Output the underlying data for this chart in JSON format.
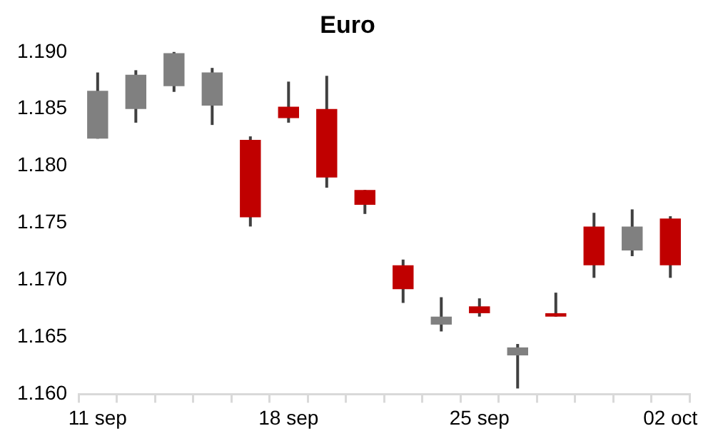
{
  "chart_data": {
    "type": "candlestick",
    "title": "Euro",
    "categories": [
      "11 sep",
      null,
      null,
      null,
      null,
      "18 sep",
      null,
      null,
      null,
      null,
      "25 sep",
      null,
      null,
      null,
      null,
      "02 oct"
    ],
    "ohlc": [
      [
        1.1824,
        1.1882,
        1.1824,
        1.1866
      ],
      [
        1.185,
        1.1884,
        1.1838,
        1.188
      ],
      [
        1.187,
        1.19,
        1.1865,
        1.1899
      ],
      [
        1.1853,
        1.1886,
        1.1836,
        1.1882
      ],
      [
        1.1823,
        1.1826,
        1.1747,
        1.1755
      ],
      [
        1.1852,
        1.1874,
        1.1838,
        1.1842
      ],
      [
        1.185,
        1.1879,
        1.1781,
        1.179
      ],
      [
        1.1779,
        1.1779,
        1.1758,
        1.1766
      ],
      [
        1.1713,
        1.1718,
        1.168,
        1.1692
      ],
      [
        1.1661,
        1.1685,
        1.1655,
        1.1668
      ],
      [
        1.1677,
        1.1684,
        1.1668,
        1.1671
      ],
      [
        1.1634,
        1.1644,
        1.1605,
        1.1641
      ],
      [
        1.1671,
        1.1689,
        1.1668,
        1.1668
      ],
      [
        1.1747,
        1.1759,
        1.1702,
        1.1713
      ],
      [
        1.1726,
        1.1762,
        1.1721,
        1.1747
      ],
      [
        1.1754,
        1.1756,
        1.1702,
        1.1713
      ]
    ],
    "colors": [
      "#808080",
      "#808080",
      "#808080",
      "#808080",
      "#c00000",
      "#c00000",
      "#c00000",
      "#c00000",
      "#c00000",
      "#808080",
      "#c00000",
      "#808080",
      "#c00000",
      "#c00000",
      "#808080",
      "#c00000"
    ],
    "ylim": [
      1.16,
      1.19
    ],
    "yticks": [
      {
        "value": 1.16,
        "label": "1.160"
      },
      {
        "value": 1.165,
        "label": "1.165"
      },
      {
        "value": 1.17,
        "label": "1.170"
      },
      {
        "value": 1.175,
        "label": "1.175"
      },
      {
        "value": 1.18,
        "label": "1.180"
      },
      {
        "value": 1.185,
        "label": "1.185"
      },
      {
        "value": 1.19,
        "label": "1.190"
      }
    ],
    "grid": false,
    "legend": false
  }
}
